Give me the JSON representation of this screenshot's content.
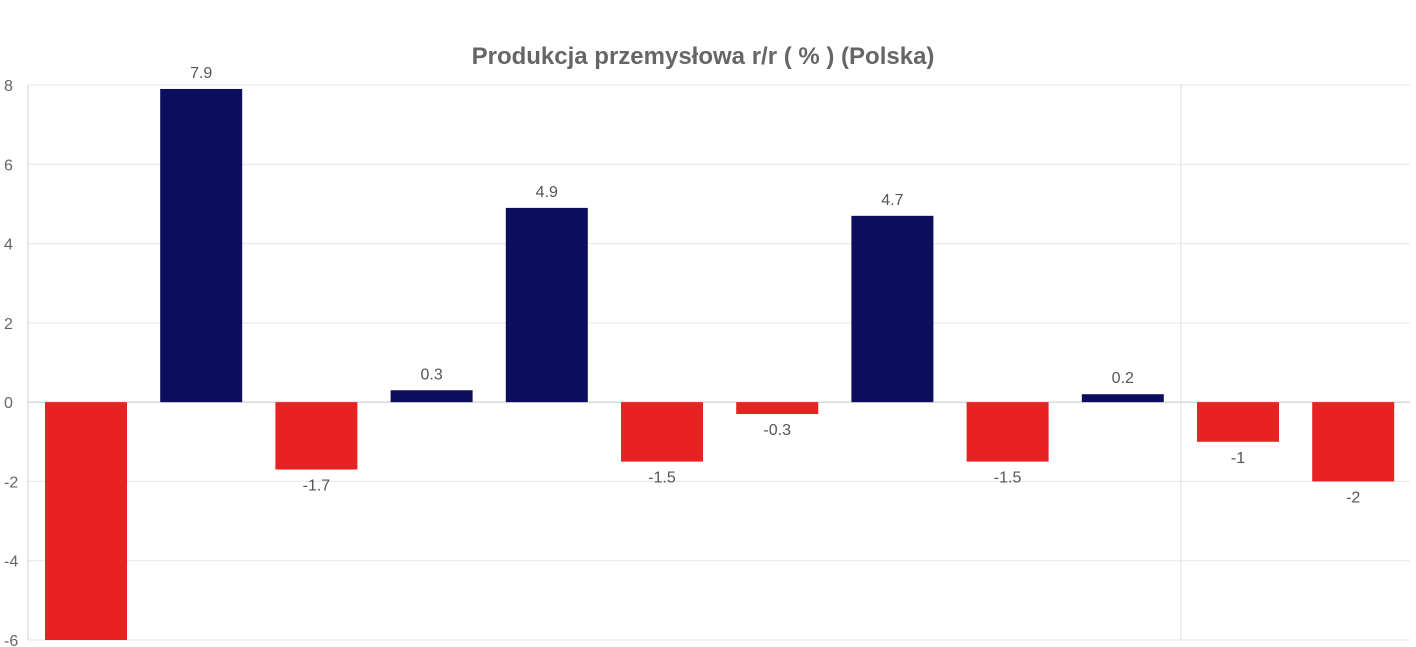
{
  "chart_data": {
    "type": "bar",
    "title": "Produkcja przemysłowa r/r ( % ) (Polska)",
    "xlabel": "",
    "ylabel": "",
    "ylim": [
      -6,
      8
    ],
    "yticks": [
      "-6",
      "-4",
      "-2",
      "0",
      "2",
      "4",
      "6",
      "8"
    ],
    "ytick_values": [
      -6,
      -4,
      -2,
      0,
      2,
      4,
      6,
      8
    ],
    "grid": true,
    "legend": "none",
    "colors": {
      "positive": "#0c0d5d",
      "negative": "#e82222"
    },
    "values": [
      -6,
      7.9,
      -1.7,
      0.3,
      4.9,
      -1.5,
      -0.3,
      4.7,
      -1.5,
      0.2,
      -1,
      -2
    ],
    "data_labels": [
      "",
      "7.9",
      "-1.7",
      "0.3",
      "4.9",
      "-1.5",
      "-0.3",
      "4.7",
      "-1.5",
      "0.2",
      "-1",
      "-2"
    ]
  }
}
